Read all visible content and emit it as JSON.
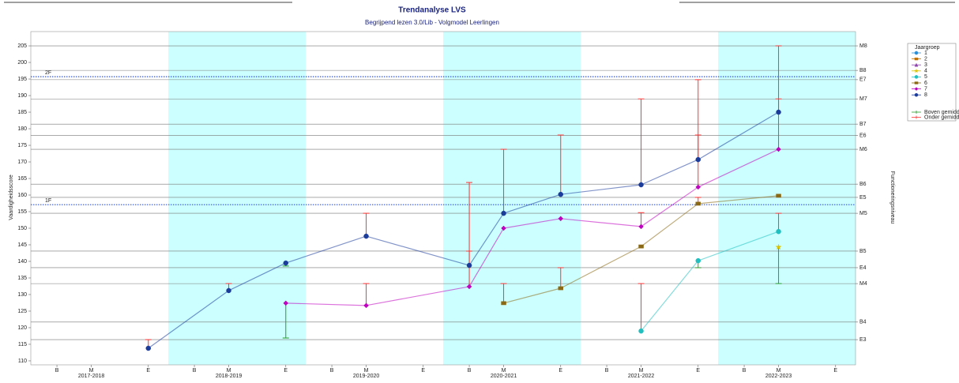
{
  "chart_data": {
    "type": "line",
    "title": "Trendanalyse LVS",
    "subtitle": "Begrijpend lezen 3.0/Lib - Volgmodel Leerlingen",
    "y_label": "Vaardigheidsscore",
    "y2_label": "Functioneringsniveau",
    "legend_title": "Jaargroep",
    "legend_position": "right",
    "years": [
      "2017-2018",
      "2018-2019",
      "2019-2020",
      "2020-2021",
      "2021-2022",
      "2022-2023"
    ],
    "categories": [
      "B",
      "M",
      "E",
      "B",
      "M",
      "E",
      "B",
      "M",
      "E",
      "B",
      "M",
      "E",
      "B",
      "M",
      "E",
      "B",
      "M",
      "E"
    ],
    "shade_color": "#ccffff",
    "ylim": [
      108.8,
      209.3
    ],
    "yticks": [
      110,
      115,
      120,
      125,
      130,
      135,
      140,
      145,
      150,
      155,
      160,
      165,
      170,
      175,
      180,
      185,
      190,
      195,
      200,
      205
    ],
    "y2lim": [
      108.8,
      209.3
    ],
    "y2ticks": [
      {
        "value": 205,
        "label": "M8"
      },
      {
        "value": 197.6,
        "label": "B8"
      },
      {
        "value": 194.8,
        "label": "E7"
      },
      {
        "value": 189,
        "label": "M7"
      },
      {
        "value": 181.4,
        "label": "B7"
      },
      {
        "value": 178,
        "label": "E6"
      },
      {
        "value": 173.8,
        "label": "M6"
      },
      {
        "value": 163.3,
        "label": "B6"
      },
      {
        "value": 159.3,
        "label": "E5"
      },
      {
        "value": 154.5,
        "label": "M5"
      },
      {
        "value": 143.1,
        "label": "B5"
      },
      {
        "value": 138.1,
        "label": "E4"
      },
      {
        "value": 133.3,
        "label": "M4"
      },
      {
        "value": 121.7,
        "label": "B4"
      },
      {
        "value": 116.4,
        "label": "E3"
      }
    ],
    "grid": true,
    "reference_lines": [
      {
        "label": "2F",
        "value": 195.7,
        "color": "#3355cc"
      },
      {
        "label": "1F",
        "value": 157.1,
        "color": "#3355cc"
      }
    ],
    "error_legend": [
      {
        "name": "Boven gemiddelde",
        "color": "#2a9d2a"
      },
      {
        "name": "Onder gemiddelde",
        "color": "#ff3333"
      }
    ],
    "series": [
      {
        "name": "1",
        "color": "#2a8fd8",
        "marker": "circle",
        "values": [
          null,
          null,
          null,
          null,
          null,
          null,
          null,
          null,
          null,
          null,
          null,
          null,
          null,
          null,
          null,
          null,
          null,
          null
        ],
        "averages": [
          null,
          null,
          null,
          null,
          null,
          null,
          null,
          null,
          null,
          null,
          null,
          null,
          null,
          null,
          null,
          null,
          null,
          null
        ]
      },
      {
        "name": "2",
        "color": "#c07000",
        "marker": "square",
        "values": [
          null,
          null,
          null,
          null,
          null,
          null,
          null,
          null,
          null,
          null,
          null,
          null,
          null,
          null,
          null,
          null,
          null,
          null
        ],
        "averages": [
          null,
          null,
          null,
          null,
          null,
          null,
          null,
          null,
          null,
          null,
          null,
          null,
          null,
          null,
          null,
          null,
          null,
          null
        ]
      },
      {
        "name": "3",
        "color": "#8e44ad",
        "marker": "triangle",
        "values": [
          null,
          null,
          null,
          null,
          null,
          null,
          null,
          null,
          null,
          null,
          null,
          null,
          null,
          null,
          null,
          null,
          null,
          null
        ],
        "averages": [
          null,
          null,
          null,
          null,
          null,
          null,
          null,
          null,
          null,
          null,
          null,
          null,
          null,
          null,
          null,
          null,
          null,
          null
        ]
      },
      {
        "name": "4",
        "color": "#d9c300",
        "marker": "star",
        "values": [
          null,
          null,
          null,
          null,
          null,
          null,
          null,
          null,
          null,
          null,
          null,
          null,
          null,
          null,
          null,
          null,
          144.3,
          null
        ],
        "averages": [
          null,
          null,
          null,
          null,
          null,
          null,
          null,
          null,
          null,
          null,
          null,
          null,
          null,
          null,
          null,
          null,
          133.3,
          null
        ]
      },
      {
        "name": "5",
        "color": "#20c0c0",
        "marker": "circle",
        "values": [
          null,
          null,
          null,
          null,
          null,
          null,
          null,
          null,
          null,
          null,
          null,
          null,
          null,
          119,
          140.2,
          null,
          149,
          null
        ],
        "averages": [
          null,
          null,
          null,
          null,
          null,
          null,
          null,
          null,
          null,
          null,
          null,
          null,
          null,
          133.3,
          138.1,
          null,
          154.5,
          null
        ]
      },
      {
        "name": "6",
        "color": "#8b6914",
        "marker": "square",
        "values": [
          null,
          null,
          null,
          null,
          null,
          null,
          null,
          null,
          null,
          null,
          127.4,
          131.9,
          null,
          144.5,
          157.4,
          null,
          159.8,
          null
        ],
        "averages": [
          null,
          null,
          null,
          null,
          null,
          null,
          null,
          null,
          null,
          null,
          133.3,
          138.1,
          null,
          null,
          159.3,
          null,
          null,
          null
        ]
      },
      {
        "name": "7",
        "color": "#c000c0",
        "marker": "diamond",
        "values": [
          null,
          null,
          null,
          null,
          null,
          127.4,
          null,
          126.7,
          null,
          132.4,
          150,
          152.9,
          null,
          150.5,
          162.4,
          null,
          173.8,
          null
        ],
        "averages": [
          null,
          null,
          null,
          null,
          null,
          116.9,
          null,
          133.3,
          null,
          143.1,
          null,
          null,
          null,
          154.7,
          178.1,
          null,
          189,
          null
        ]
      },
      {
        "name": "8",
        "color": "#1c3c9c",
        "marker": "circle",
        "values": [
          null,
          null,
          113.8,
          null,
          131.2,
          139.5,
          null,
          147.6,
          null,
          138.8,
          154.5,
          160.2,
          null,
          163.1,
          170.7,
          null,
          185,
          null
        ],
        "averages": [
          null,
          null,
          116.4,
          null,
          133.3,
          138.6,
          null,
          154.5,
          null,
          163.8,
          173.8,
          178.1,
          null,
          189,
          194.8,
          null,
          205,
          null
        ]
      }
    ]
  }
}
